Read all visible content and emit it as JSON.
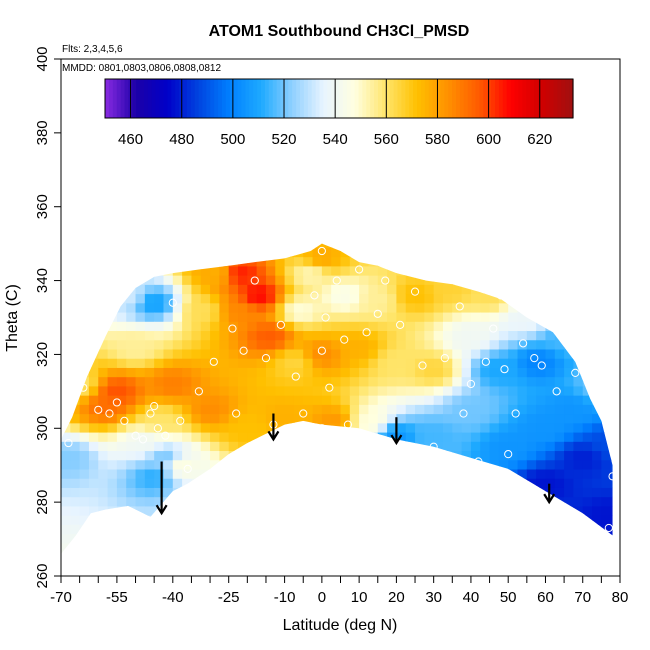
{
  "chart_data": {
    "type": "heatmap",
    "title": "ATOM1 Southbound CH3Cl_PMSD",
    "info_lines": [
      "Flts: 2,3,4,5,6",
      "MMDD: 0801,0803,0806,0808,0812"
    ],
    "xlabel": "Latitude (deg N)",
    "ylabel": "Theta (C)",
    "xlim": [
      -70,
      80
    ],
    "ylim": [
      260,
      400
    ],
    "x_ticks": [
      -70,
      -65,
      -60,
      -55,
      -50,
      -45,
      -40,
      -35,
      -30,
      -25,
      -20,
      -15,
      -10,
      -5,
      0,
      5,
      10,
      15,
      20,
      25,
      30,
      35,
      40,
      45,
      50,
      55,
      60,
      65,
      70,
      75,
      80
    ],
    "x_tick_labels": [
      "-70",
      "",
      "",
      "-55",
      "",
      "",
      "-40",
      "",
      "",
      "-25",
      "",
      "",
      "-10",
      "",
      "0",
      "",
      "10",
      "",
      "20",
      "",
      "30",
      "",
      "40",
      "",
      "50",
      "",
      "60",
      "",
      "70",
      "",
      "80"
    ],
    "y_ticks": [
      260,
      280,
      300,
      320,
      340,
      360,
      380,
      400
    ],
    "y_tick_labels": [
      "260",
      "280",
      "300",
      "320",
      "340",
      "360",
      "380",
      "400"
    ],
    "colorbar": {
      "range": [
        450,
        633
      ],
      "ticks": [
        460,
        480,
        500,
        520,
        540,
        560,
        580,
        600,
        620
      ],
      "tick_labels": [
        "460",
        "480",
        "500",
        "520",
        "540",
        "560",
        "580",
        "600",
        "620"
      ],
      "colors": [
        "#8a2be2",
        "#1c00a8",
        "#0000c8",
        "#0044e0",
        "#0080ff",
        "#1eaaff",
        "#8fd0ff",
        "#e8f4ff",
        "#ffffe0",
        "#ffe56b",
        "#ffc000",
        "#ff9000",
        "#ff5a00",
        "#ff0000",
        "#d00000",
        "#a01010"
      ]
    },
    "field_anchors": [
      {
        "lat": -68,
        "theta": 292,
        "value": 522
      },
      {
        "lat": -65,
        "theta": 312,
        "value": 560
      },
      {
        "lat": -58,
        "theta": 306,
        "value": 592
      },
      {
        "lat": -55,
        "theta": 310,
        "value": 598
      },
      {
        "lat": -48,
        "theta": 296,
        "value": 540
      },
      {
        "lat": -45,
        "theta": 287,
        "value": 512
      },
      {
        "lat": -42,
        "theta": 292,
        "value": 520
      },
      {
        "lat": -43,
        "theta": 302,
        "value": 560
      },
      {
        "lat": -38,
        "theta": 290,
        "value": 548
      },
      {
        "lat": -50,
        "theta": 322,
        "value": 555
      },
      {
        "lat": -45,
        "theta": 334,
        "value": 508
      },
      {
        "lat": -52,
        "theta": 336,
        "value": 532
      },
      {
        "lat": -40,
        "theta": 312,
        "value": 588
      },
      {
        "lat": -30,
        "theta": 305,
        "value": 585
      },
      {
        "lat": -32,
        "theta": 332,
        "value": 562
      },
      {
        "lat": -28,
        "theta": 342,
        "value": 576
      },
      {
        "lat": -22,
        "theta": 332,
        "value": 586
      },
      {
        "lat": -22,
        "theta": 342,
        "value": 605
      },
      {
        "lat": -17,
        "theta": 336,
        "value": 608
      },
      {
        "lat": -14,
        "theta": 325,
        "value": 596
      },
      {
        "lat": -20,
        "theta": 300,
        "value": 572
      },
      {
        "lat": -10,
        "theta": 303,
        "value": 576
      },
      {
        "lat": -7,
        "theta": 318,
        "value": 565
      },
      {
        "lat": -6,
        "theta": 332,
        "value": 548
      },
      {
        "lat": -3,
        "theta": 342,
        "value": 552
      },
      {
        "lat": 0,
        "theta": 346,
        "value": 578
      },
      {
        "lat": 0,
        "theta": 320,
        "value": 585
      },
      {
        "lat": 3,
        "theta": 302,
        "value": 582
      },
      {
        "lat": 6,
        "theta": 336,
        "value": 545
      },
      {
        "lat": 10,
        "theta": 322,
        "value": 576
      },
      {
        "lat": 13,
        "theta": 302,
        "value": 548
      },
      {
        "lat": 15,
        "theta": 335,
        "value": 555
      },
      {
        "lat": 20,
        "theta": 318,
        "value": 560
      },
      {
        "lat": 20,
        "theta": 298,
        "value": 505
      },
      {
        "lat": 25,
        "theta": 336,
        "value": 572
      },
      {
        "lat": 30,
        "theta": 316,
        "value": 565
      },
      {
        "lat": 30,
        "theta": 298,
        "value": 515
      },
      {
        "lat": 35,
        "theta": 338,
        "value": 566
      },
      {
        "lat": 40,
        "theta": 325,
        "value": 540
      },
      {
        "lat": 40,
        "theta": 305,
        "value": 520
      },
      {
        "lat": 45,
        "theta": 336,
        "value": 562
      },
      {
        "lat": 47,
        "theta": 316,
        "value": 510
      },
      {
        "lat": 50,
        "theta": 295,
        "value": 505
      },
      {
        "lat": 55,
        "theta": 330,
        "value": 538
      },
      {
        "lat": 58,
        "theta": 318,
        "value": 500
      },
      {
        "lat": 60,
        "theta": 300,
        "value": 505
      },
      {
        "lat": 60,
        "theta": 285,
        "value": 478
      },
      {
        "lat": 65,
        "theta": 325,
        "value": 515
      },
      {
        "lat": 67,
        "theta": 305,
        "value": 505
      },
      {
        "lat": 70,
        "theta": 292,
        "value": 480
      },
      {
        "lat": 72,
        "theta": 328,
        "value": 515
      },
      {
        "lat": 75,
        "theta": 312,
        "value": 520
      },
      {
        "lat": 77,
        "theta": 296,
        "value": 488
      },
      {
        "lat": 77,
        "theta": 276,
        "value": 478
      }
    ],
    "data_bounds": {
      "lat_min": -70,
      "lat_max": 78,
      "lower_theta": [
        [
          -70,
          266
        ],
        [
          -66,
          271
        ],
        [
          -62,
          277
        ],
        [
          -58,
          278
        ],
        [
          -52,
          279
        ],
        [
          -46,
          276
        ],
        [
          -40,
          283
        ],
        [
          -36,
          285
        ],
        [
          -30,
          289
        ],
        [
          -25,
          293
        ],
        [
          -20,
          296
        ],
        [
          -16,
          298
        ],
        [
          -10,
          301
        ],
        [
          -5,
          302
        ],
        [
          0,
          301
        ],
        [
          10,
          300
        ],
        [
          20,
          297
        ],
        [
          30,
          295
        ],
        [
          40,
          292
        ],
        [
          50,
          289
        ],
        [
          60,
          283
        ],
        [
          70,
          277
        ],
        [
          78,
          271
        ]
      ],
      "upper_theta": [
        [
          -70,
          297
        ],
        [
          -67,
          303
        ],
        [
          -63,
          314
        ],
        [
          -58,
          325
        ],
        [
          -54,
          333
        ],
        [
          -50,
          338
        ],
        [
          -45,
          341
        ],
        [
          -40,
          342
        ],
        [
          -33,
          343
        ],
        [
          -25,
          344
        ],
        [
          -18,
          345
        ],
        [
          -10,
          346
        ],
        [
          -3,
          348
        ],
        [
          0,
          350
        ],
        [
          5,
          348
        ],
        [
          10,
          345
        ],
        [
          15,
          344
        ],
        [
          20,
          342
        ],
        [
          28,
          340
        ],
        [
          35,
          339
        ],
        [
          42,
          337
        ],
        [
          48,
          335
        ],
        [
          55,
          330
        ],
        [
          62,
          326
        ],
        [
          68,
          318
        ],
        [
          72,
          308
        ],
        [
          75,
          302
        ],
        [
          78,
          290
        ]
      ]
    },
    "observations": [
      {
        "lat": -68,
        "theta": 296
      },
      {
        "lat": -66,
        "theta": 309
      },
      {
        "lat": -64,
        "theta": 311
      },
      {
        "lat": -60,
        "theta": 305
      },
      {
        "lat": -57,
        "theta": 304
      },
      {
        "lat": -55,
        "theta": 307
      },
      {
        "lat": -53,
        "theta": 302
      },
      {
        "lat": -50,
        "theta": 298
      },
      {
        "lat": -48,
        "theta": 297
      },
      {
        "lat": -46,
        "theta": 304
      },
      {
        "lat": -45,
        "theta": 306
      },
      {
        "lat": -44,
        "theta": 300
      },
      {
        "lat": -42,
        "theta": 298
      },
      {
        "lat": -40,
        "theta": 334
      },
      {
        "lat": -38,
        "theta": 302
      },
      {
        "lat": -36,
        "theta": 289
      },
      {
        "lat": -33,
        "theta": 310
      },
      {
        "lat": -29,
        "theta": 318
      },
      {
        "lat": -24,
        "theta": 327
      },
      {
        "lat": -23,
        "theta": 304
      },
      {
        "lat": -21,
        "theta": 321
      },
      {
        "lat": -18,
        "theta": 340
      },
      {
        "lat": -15,
        "theta": 319
      },
      {
        "lat": -13,
        "theta": 301
      },
      {
        "lat": -11,
        "theta": 328
      },
      {
        "lat": -7,
        "theta": 314
      },
      {
        "lat": -5,
        "theta": 304
      },
      {
        "lat": -2,
        "theta": 336
      },
      {
        "lat": 0,
        "theta": 300
      },
      {
        "lat": 0,
        "theta": 321
      },
      {
        "lat": 0,
        "theta": 348
      },
      {
        "lat": 1,
        "theta": 330
      },
      {
        "lat": 2,
        "theta": 311
      },
      {
        "lat": 4,
        "theta": 340
      },
      {
        "lat": 6,
        "theta": 324
      },
      {
        "lat": 7,
        "theta": 301
      },
      {
        "lat": 10,
        "theta": 343
      },
      {
        "lat": 12,
        "theta": 326
      },
      {
        "lat": 15,
        "theta": 331
      },
      {
        "lat": 17,
        "theta": 340
      },
      {
        "lat": 21,
        "theta": 328
      },
      {
        "lat": 25,
        "theta": 337
      },
      {
        "lat": 27,
        "theta": 317
      },
      {
        "lat": 30,
        "theta": 295
      },
      {
        "lat": 33,
        "theta": 319
      },
      {
        "lat": 37,
        "theta": 333
      },
      {
        "lat": 38,
        "theta": 304
      },
      {
        "lat": 40,
        "theta": 312
      },
      {
        "lat": 42,
        "theta": 291
      },
      {
        "lat": 44,
        "theta": 318
      },
      {
        "lat": 46,
        "theta": 327
      },
      {
        "lat": 48,
        "theta": 336
      },
      {
        "lat": 49,
        "theta": 316
      },
      {
        "lat": 50,
        "theta": 293
      },
      {
        "lat": 52,
        "theta": 304
      },
      {
        "lat": 54,
        "theta": 323
      },
      {
        "lat": 57,
        "theta": 319
      },
      {
        "lat": 59,
        "theta": 317
      },
      {
        "lat": 61,
        "theta": 332
      },
      {
        "lat": 63,
        "theta": 310
      },
      {
        "lat": 65,
        "theta": 328
      },
      {
        "lat": 68,
        "theta": 315
      },
      {
        "lat": 71,
        "theta": 332
      },
      {
        "lat": 74,
        "theta": 327
      },
      {
        "lat": 76,
        "theta": 316
      },
      {
        "lat": 78,
        "theta": 301
      },
      {
        "lat": 78,
        "theta": 287
      },
      {
        "lat": 77,
        "theta": 273
      }
    ],
    "arrows": [
      {
        "lat": -43,
        "theta_from": 291,
        "theta_to": 277
      },
      {
        "lat": -13,
        "theta_from": 304,
        "theta_to": 297
      },
      {
        "lat": 20,
        "theta_from": 303,
        "theta_to": 296
      },
      {
        "lat": 61,
        "theta_from": 285,
        "theta_to": 280
      }
    ]
  }
}
